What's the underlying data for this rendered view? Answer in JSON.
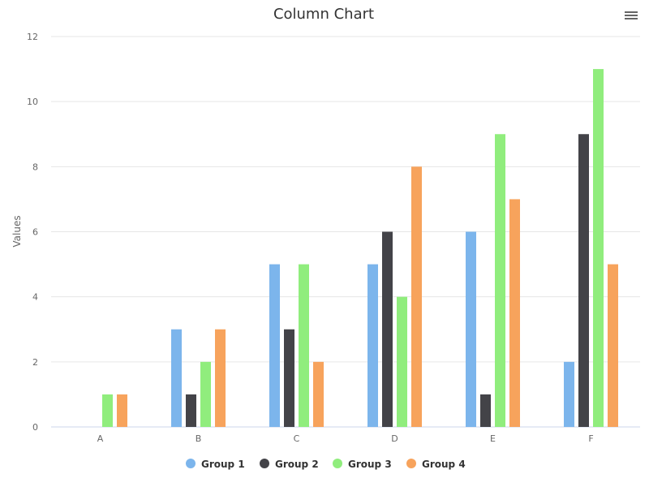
{
  "chart_data": {
    "type": "bar",
    "title": "Column Chart",
    "xlabel": "",
    "ylabel": "Values",
    "categories": [
      "A",
      "B",
      "C",
      "D",
      "E",
      "F"
    ],
    "ylim": [
      0,
      12
    ],
    "yticks": [
      0,
      2,
      4,
      6,
      8,
      10,
      12
    ],
    "grid": true,
    "legend_position": "bottom",
    "series": [
      {
        "name": "Group 1",
        "color": "#7cb5ec",
        "values": [
          0,
          3,
          5,
          5,
          6,
          2
        ]
      },
      {
        "name": "Group 2",
        "color": "#434348",
        "values": [
          0,
          1,
          3,
          6,
          1,
          9
        ]
      },
      {
        "name": "Group 3",
        "color": "#90ed7d",
        "values": [
          1,
          2,
          5,
          4,
          9,
          11
        ]
      },
      {
        "name": "Group 4",
        "color": "#f7a35c",
        "values": [
          1,
          3,
          2,
          8,
          7,
          5
        ]
      }
    ]
  },
  "toolbar": {
    "menu_icon": "hamburger-menu-icon"
  }
}
